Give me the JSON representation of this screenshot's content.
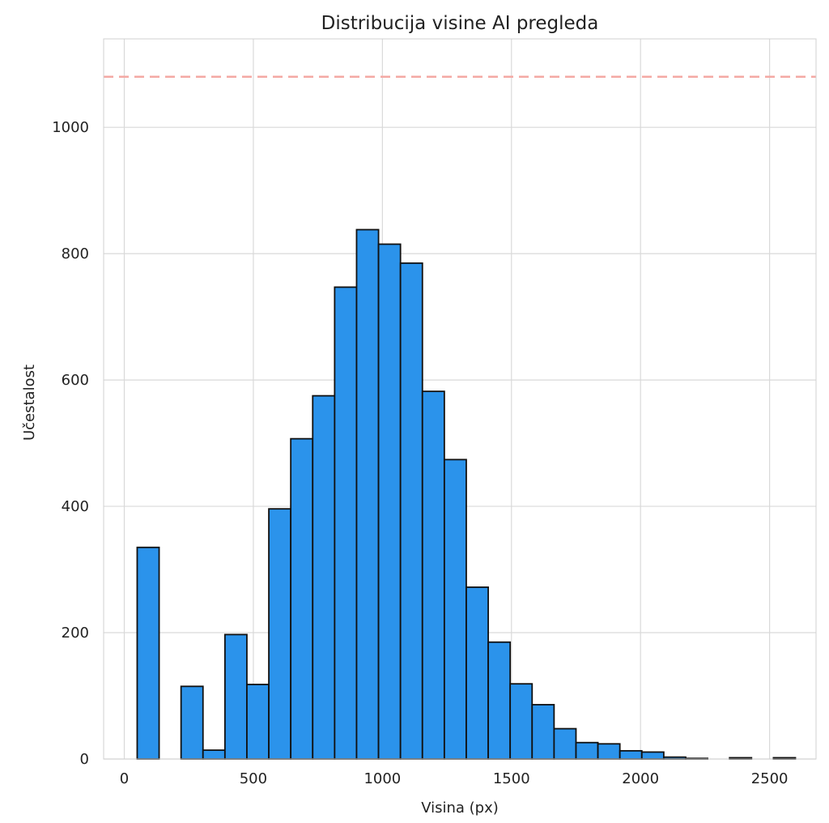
{
  "chart_data": {
    "type": "bar",
    "title": "Distribucija visine AI pregleda",
    "xlabel": "Visina (px)",
    "ylabel": "Učestalost",
    "xlim": [
      -80,
      2680
    ],
    "ylim": [
      0,
      1140
    ],
    "x_ticks": [
      0,
      500,
      1000,
      1500,
      2000,
      2500
    ],
    "y_ticks": [
      0,
      200,
      400,
      600,
      800,
      1000
    ],
    "grid": true,
    "bar_color": "#2b93eb",
    "bar_edge_color": "#111111",
    "reference_line": {
      "y": 1080,
      "color": "#f4a9a4",
      "style": "dashed"
    },
    "bins": [
      {
        "x0": 50,
        "x1": 135,
        "count": 335
      },
      {
        "x0": 135,
        "x1": 220,
        "count": 0
      },
      {
        "x0": 220,
        "x1": 305,
        "count": 115
      },
      {
        "x0": 305,
        "x1": 390,
        "count": 14
      },
      {
        "x0": 390,
        "x1": 475,
        "count": 197
      },
      {
        "x0": 475,
        "x1": 560,
        "count": 118
      },
      {
        "x0": 560,
        "x1": 645,
        "count": 396
      },
      {
        "x0": 645,
        "x1": 730,
        "count": 507
      },
      {
        "x0": 730,
        "x1": 815,
        "count": 575
      },
      {
        "x0": 815,
        "x1": 900,
        "count": 747
      },
      {
        "x0": 900,
        "x1": 985,
        "count": 838
      },
      {
        "x0": 985,
        "x1": 1070,
        "count": 815
      },
      {
        "x0": 1070,
        "x1": 1155,
        "count": 785
      },
      {
        "x0": 1155,
        "x1": 1240,
        "count": 582
      },
      {
        "x0": 1240,
        "x1": 1325,
        "count": 474
      },
      {
        "x0": 1325,
        "x1": 1410,
        "count": 272
      },
      {
        "x0": 1410,
        "x1": 1495,
        "count": 185
      },
      {
        "x0": 1495,
        "x1": 1580,
        "count": 119
      },
      {
        "x0": 1580,
        "x1": 1665,
        "count": 86
      },
      {
        "x0": 1665,
        "x1": 1750,
        "count": 48
      },
      {
        "x0": 1750,
        "x1": 1835,
        "count": 26
      },
      {
        "x0": 1835,
        "x1": 1920,
        "count": 24
      },
      {
        "x0": 1920,
        "x1": 2005,
        "count": 13
      },
      {
        "x0": 2005,
        "x1": 2090,
        "count": 11
      },
      {
        "x0": 2090,
        "x1": 2175,
        "count": 3
      },
      {
        "x0": 2175,
        "x1": 2260,
        "count": 1
      },
      {
        "x0": 2260,
        "x1": 2345,
        "count": 0
      },
      {
        "x0": 2345,
        "x1": 2430,
        "count": 2
      },
      {
        "x0": 2430,
        "x1": 2515,
        "count": 0
      },
      {
        "x0": 2515,
        "x1": 2600,
        "count": 2
      }
    ]
  }
}
